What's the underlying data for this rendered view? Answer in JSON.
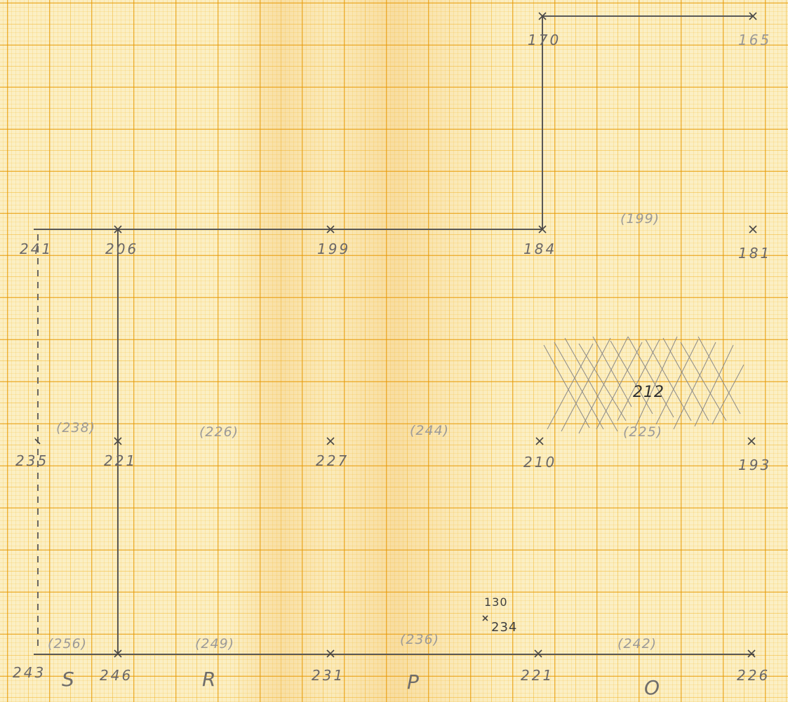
{
  "spot_heights": [
    {
      "id": "a",
      "text": "170"
    },
    {
      "id": "b",
      "text": "165"
    },
    {
      "id": "c",
      "text": "241"
    },
    {
      "id": "d",
      "text": "206"
    },
    {
      "id": "e",
      "text": "199"
    },
    {
      "id": "f",
      "text": "184"
    },
    {
      "id": "g",
      "text": "181"
    },
    {
      "id": "h",
      "text": "235"
    },
    {
      "id": "i",
      "text": "221"
    },
    {
      "id": "j",
      "text": "227"
    },
    {
      "id": "k",
      "text": "210"
    },
    {
      "id": "l",
      "text": "193"
    },
    {
      "id": "m",
      "text": "243"
    },
    {
      "id": "n",
      "text": "246"
    },
    {
      "id": "o",
      "text": "231"
    },
    {
      "id": "p",
      "text": "221"
    },
    {
      "id": "q",
      "text": "226"
    }
  ],
  "bracketed_values": [
    "(199)",
    "(238)",
    "(226)",
    "(244)",
    "(225)",
    "(256)",
    "(249)",
    "(236)",
    "(242)"
  ],
  "side_point": {
    "upper": "130",
    "lower": "234"
  },
  "shaded_value": "212",
  "row_letters": [
    "S",
    "R",
    "P",
    "O"
  ],
  "colors": {
    "paper": "#fbefc4",
    "grid": "#e89600",
    "pencil": "#5a5856"
  }
}
